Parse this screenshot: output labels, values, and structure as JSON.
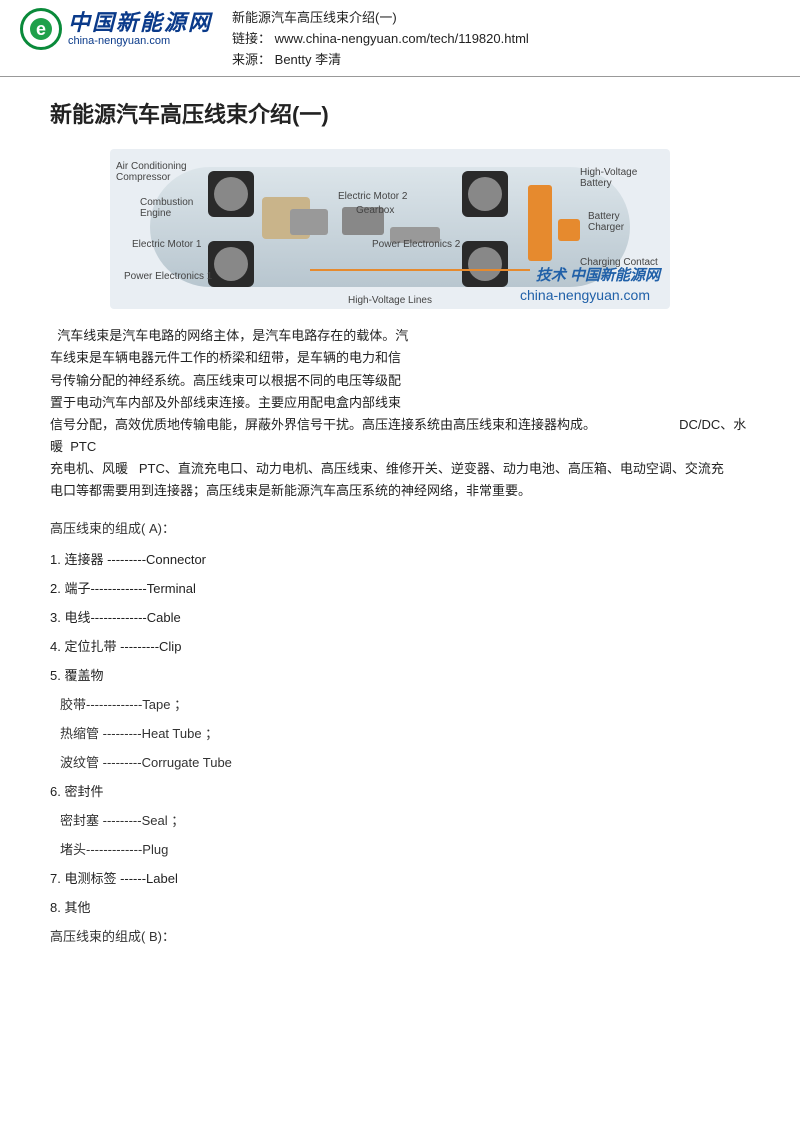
{
  "header": {
    "logo_cn": "中国新能源网",
    "logo_en": "china-nengyuan.com",
    "title": "新能源汽车高压线束介绍(一)",
    "link_label": "链接：",
    "link_value": "www.china-nengyuan.com/tech/119820.html",
    "source_label": "来源：",
    "source_value": "Bentty  李清"
  },
  "page_title": "新能源汽车高压线束介绍(一)",
  "diagram": {
    "labels": {
      "ac": "Air Conditioning\nCompressor",
      "ce": "Combustion\nEngine",
      "em1": "Electric Motor 1",
      "pe1": "Power Electronics 1",
      "em2": "Electric Motor 2",
      "gb": "Gearbox",
      "pe2": "Power Electronics 2",
      "hvb": "High-Voltage\nBattery",
      "bc": "Battery\nCharger",
      "cc": "Charging Contact",
      "hvl": "High-Voltage Lines"
    },
    "watermark": "技术  中国新能源网",
    "watermark_sub": "china-nengyuan.com",
    "colors": {
      "hv": "#e68a2e",
      "body": "#c6d2da",
      "wheel": "#2a2a2a"
    }
  },
  "body_text": "  汽车线束是汽车电路的网络主体，是汽车电路存在的载体。汽\n车线束是车辆电器元件工作的桥梁和纽带，是车辆的电力和信\n号传输分配的神经系统。高压线束可以根据不同的电压等级配\n置于电动汽车内部及外部线束连接。主要应用配电盒内部线束\n信号分配，高效优质地传输电能，屏蔽外界信号干扰。高压连接系统由高压线束和连接器构成。                       DC/DC、水暖  PTC\n充电机、风暖   PTC、直流充电口、动力电机、高压线束、维修开关、逆变器、动力电池、高压箱、电动空调、交流充\n电口等都需要用到连接器；高压线束是新能源汽车高压系统的神经网络，非常重要。",
  "section_a": "高压线束的组成(    A)：",
  "items": [
    "1.        连接器  ---------Connector",
    "2.        端子-------------Terminal",
    "3.      电线-------------Cable",
    "4.      定位扎带   ---------Clip",
    "5.      覆盖物"
  ],
  "subitems_5": [
    " 胶带-------------Tape            ；",
    " 热缩管   ---------Heat Tube          ；",
    " 波纹管   ---------Corrugate Tube"
  ],
  "item_6": "6.      密封件",
  "subitems_6": [
    " 密封塞   ---------Seal         ；",
    " 堵头-------------Plug"
  ],
  "items_tail": [
    "7.      电测标签   ------Label",
    "8.      其他"
  ],
  "section_b": "高压线束的组成(    B)："
}
